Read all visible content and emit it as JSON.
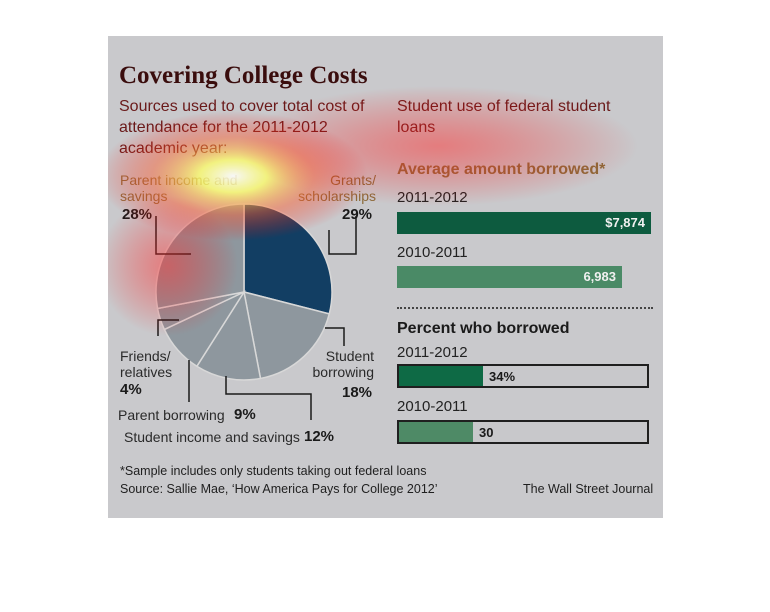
{
  "title": "Covering College Costs",
  "left_subtitle": "Sources used to cover total cost of attendance for the 2011-2012 academic year:",
  "right_subtitle": "Student use of federal student loans",
  "chart_data": [
    {
      "type": "pie",
      "categories": [
        "Grants/ scholarships",
        "Student borrowing",
        "Student income and savings",
        "Parent borrowing",
        "Friends/ relatives",
        "Parent income and savings"
      ],
      "values": [
        29,
        18,
        12,
        9,
        4,
        28
      ],
      "labels": {
        "grants": "Grants/ scholarships",
        "grants_pct": "29%",
        "student_borrowing": "Student borrowing",
        "student_borrowing_pct": "18%",
        "student_income": "Student income and savings",
        "student_income_pct": "12%",
        "parent_borrowing": "Parent borrowing",
        "parent_borrowing_pct": "9%",
        "friends": "Friends/ relatives",
        "friends_pct": "4%",
        "parent_income": "Parent income and savings",
        "parent_income_pct": "28%"
      },
      "colors": [
        "#123e63",
        "#8e979e",
        "#8e979e",
        "#8e979e",
        "#8e979e",
        "#8e979e"
      ]
    },
    {
      "type": "bar",
      "title": "Average amount borrowed*",
      "categories": [
        "2011-2012",
        "2010-2011"
      ],
      "values": [
        7874,
        6983
      ],
      "value_labels": [
        "$7,874",
        "6,983"
      ],
      "xlim": [
        0,
        7874
      ],
      "colors": [
        "#0d5b3f",
        "#4a8a66"
      ]
    },
    {
      "type": "bar",
      "title": "Percent who borrowed",
      "categories": [
        "2011-2012",
        "2010-2011"
      ],
      "values": [
        34,
        30
      ],
      "value_labels": [
        "34%",
        "30"
      ],
      "xlim": [
        0,
        100
      ],
      "colors": [
        "#0e6a45",
        "#4e8a66"
      ]
    }
  ],
  "footnote": "*Sample includes only students taking out federal loans",
  "source": "Source: Sallie Mae, ‘How America Pays for College 2012’",
  "publisher": "The Wall Street Journal"
}
